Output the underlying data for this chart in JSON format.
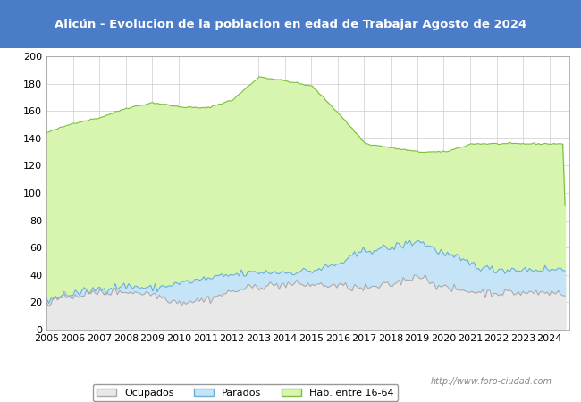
{
  "title": "Alicún - Evolucion de la poblacion en edad de Trabajar Agosto de 2024",
  "title_bg_color": "#4a7cc7",
  "title_text_color": "#ffffff",
  "ylim": [
    0,
    200
  ],
  "yticks": [
    0,
    20,
    40,
    60,
    80,
    100,
    120,
    140,
    160,
    180,
    200
  ],
  "x_start_year": 2005,
  "x_end_year": 2024,
  "legend_labels": [
    "Ocupados",
    "Parados",
    "Hab. entre 16-64"
  ],
  "watermark": "http://www.foro-ciudad.com",
  "hab_color_fill": "#d8f5b0",
  "hab_color_line": "#7bbf40",
  "parados_color_fill": "#c5e4f8",
  "parados_color_line": "#6ab0d8",
  "ocupados_color_fill": "#e8e8e8",
  "ocupados_color_line": "#aaaaaa",
  "grid_color": "#cccccc",
  "background_color": "#f5f5f5",
  "plot_bg_color": "#ffffff"
}
